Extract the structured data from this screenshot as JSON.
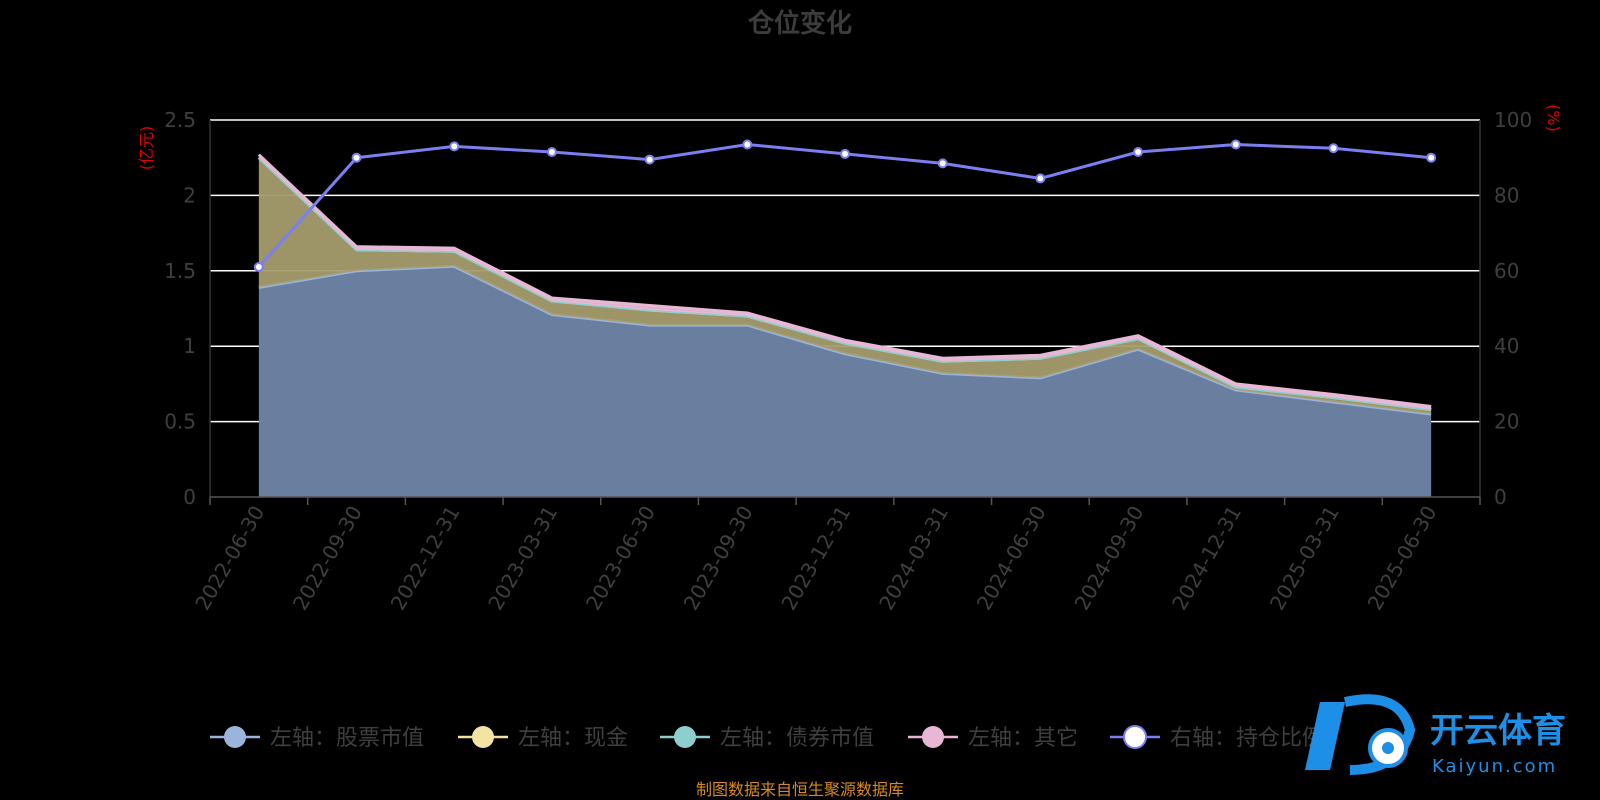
{
  "chart_data": {
    "type": "area",
    "title": "仓位变化",
    "categories": [
      "2022-06-30",
      "2022-09-30",
      "2022-12-31",
      "2023-03-31",
      "2023-06-30",
      "2023-09-30",
      "2023-12-31",
      "2024-03-31",
      "2024-06-30",
      "2024-09-30",
      "2024-12-31",
      "2025-03-31",
      "2025-06-30"
    ],
    "y_left": {
      "unit": "(亿元)",
      "min": 0,
      "max": 2.5,
      "ticks": [
        "0",
        "0.5",
        "1",
        "1.5",
        "2",
        "2.5"
      ]
    },
    "y_right": {
      "unit": "(%)",
      "min": 0,
      "max": 100,
      "ticks": [
        "0",
        "20",
        "40",
        "60",
        "80",
        "100"
      ]
    },
    "series": [
      {
        "name": "左轴：股票市值",
        "axis": "left",
        "stack": true,
        "color": "#9ab4db",
        "values": [
          1.39,
          1.5,
          1.53,
          1.21,
          1.14,
          1.14,
          0.95,
          0.82,
          0.79,
          0.98,
          0.71,
          0.63,
          0.55
        ]
      },
      {
        "name": "左轴：现金",
        "axis": "left",
        "stack": true,
        "color": "#f4e4a4",
        "values": [
          0.86,
          0.14,
          0.1,
          0.09,
          0.1,
          0.06,
          0.07,
          0.08,
          0.13,
          0.07,
          0.02,
          0.03,
          0.03
        ]
      },
      {
        "name": "左轴：债券市值",
        "axis": "left",
        "stack": true,
        "color": "#8ecfce",
        "values": [
          0,
          0,
          0,
          0,
          0,
          0,
          0,
          0,
          0,
          0,
          0,
          0,
          0
        ]
      },
      {
        "name": "左轴：其它",
        "axis": "left",
        "stack": true,
        "color": "#e9b7d6",
        "values": [
          0.02,
          0.02,
          0.02,
          0.02,
          0.03,
          0.02,
          0.02,
          0.02,
          0.02,
          0.02,
          0.02,
          0.02,
          0.02
        ]
      },
      {
        "name": "右轴：持仓比例",
        "axis": "right",
        "stack": false,
        "color": "#7b7ff0",
        "values": [
          61,
          90,
          93,
          91.5,
          89.5,
          93.5,
          91,
          88.5,
          84.5,
          91.5,
          93.5,
          92.5,
          90
        ]
      }
    ],
    "grid": true,
    "legend_position": "bottom"
  },
  "source_note": "制图数据来自恒生聚源数据库",
  "watermark": {
    "brand": "开云体育",
    "site": "Kaiyun.com"
  }
}
